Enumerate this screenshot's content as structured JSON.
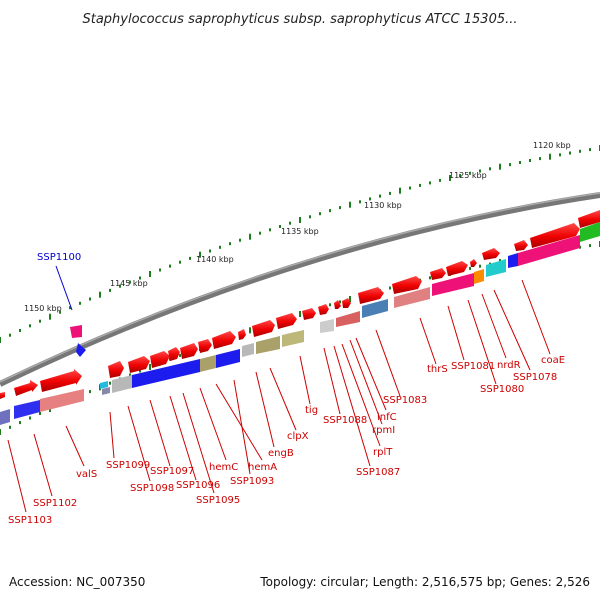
{
  "title": "Staphylococcus saprophyticus subsp. saprophyticus ATCC 15305...",
  "footer": {
    "accession": "Accession: NC_007350",
    "summary": "Topology: circular; Length: 2,516,575 bp; Genes: 2,526"
  },
  "colors": {
    "backbone": "#777777",
    "label_red": "#cc0000",
    "label_blue": "#0000cc",
    "tick": "#1e7d1e"
  },
  "kbp_labels": [
    "1150 kbp",
    "1145 kbp",
    "1140 kbp",
    "1135 kbp",
    "1130 kbp",
    "1125 kbp",
    "1120 kbp"
  ],
  "gene_labels": [
    {
      "text": "SSP1100",
      "color": "blue"
    },
    {
      "text": "SSP1103",
      "color": "red"
    },
    {
      "text": "SSP1102",
      "color": "red"
    },
    {
      "text": "valS",
      "color": "red"
    },
    {
      "text": "SSP1099",
      "color": "red"
    },
    {
      "text": "SSP1098",
      "color": "red"
    },
    {
      "text": "SSP1097",
      "color": "red"
    },
    {
      "text": "SSP1096",
      "color": "red"
    },
    {
      "text": "SSP1095",
      "color": "red"
    },
    {
      "text": "hemC",
      "color": "red"
    },
    {
      "text": "hemA",
      "color": "red"
    },
    {
      "text": "SSP1093",
      "color": "red"
    },
    {
      "text": "engB",
      "color": "red"
    },
    {
      "text": "clpX",
      "color": "red"
    },
    {
      "text": "tig",
      "color": "red"
    },
    {
      "text": "SSP1088",
      "color": "red"
    },
    {
      "text": "SSP1087",
      "color": "red"
    },
    {
      "text": "rplT",
      "color": "red"
    },
    {
      "text": "rpmI",
      "color": "red"
    },
    {
      "text": "infC",
      "color": "red"
    },
    {
      "text": "SSP1083",
      "color": "red"
    },
    {
      "text": "thrS",
      "color": "red"
    },
    {
      "text": "SSP1081",
      "color": "red"
    },
    {
      "text": "SSP1080",
      "color": "red"
    },
    {
      "text": "nrdR",
      "color": "red"
    },
    {
      "text": "SSP1078",
      "color": "red"
    },
    {
      "text": "coaE",
      "color": "red"
    }
  ]
}
